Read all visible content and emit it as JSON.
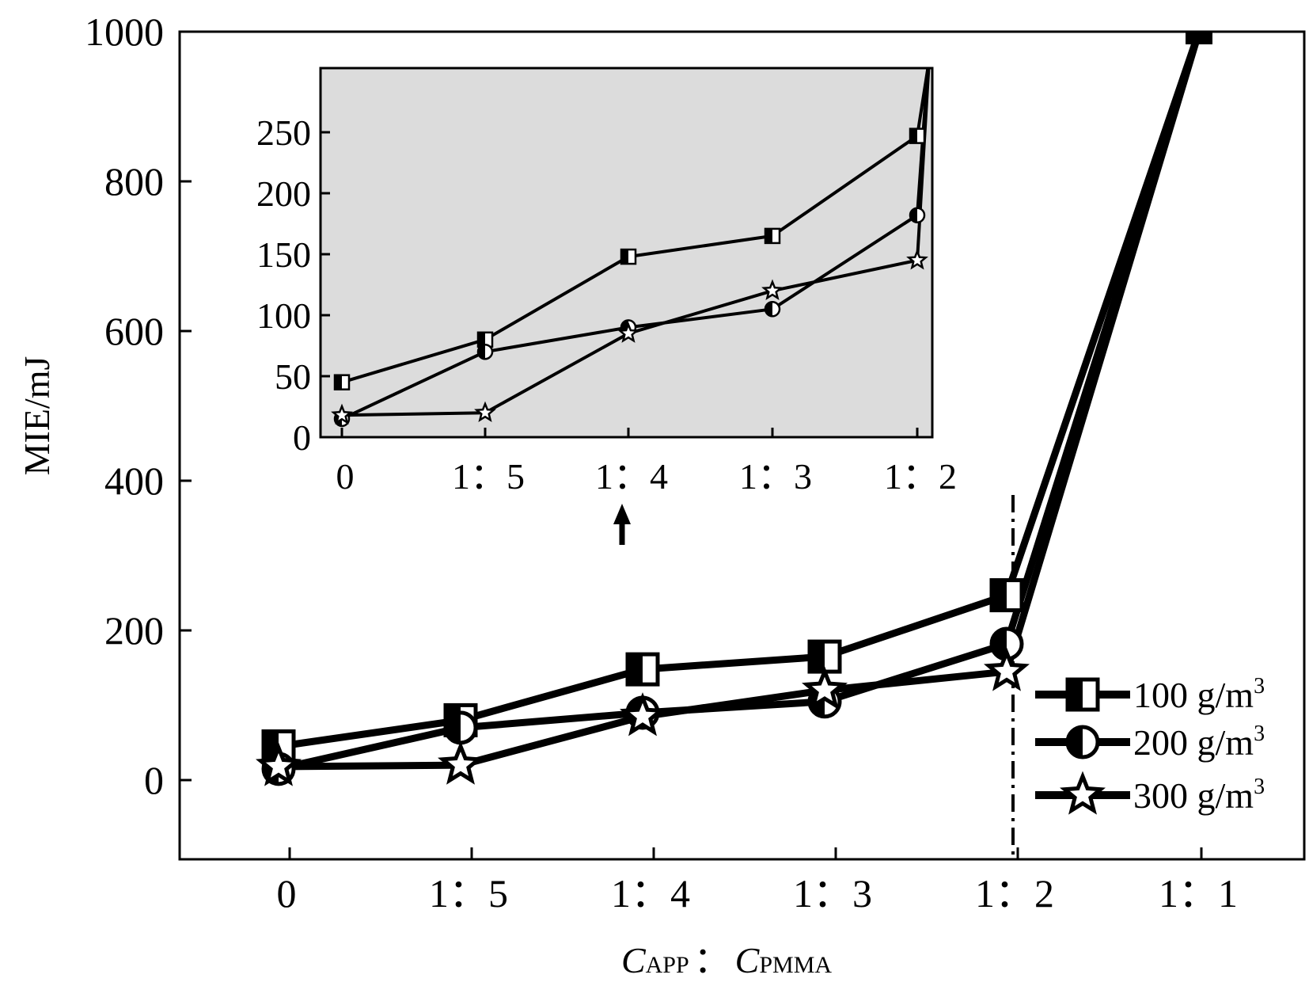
{
  "chart_data": {
    "type": "line",
    "ylabel": "MIE/mJ",
    "xlabel": {
      "c1": "C",
      "s1": "APP",
      "sep": "：",
      "c2": "C",
      "s2": "PMMA"
    },
    "categories": [
      "0",
      "1：5",
      "1：4",
      "1：3",
      "1：2",
      "1：1"
    ],
    "ylim": [
      -100,
      1000
    ],
    "yticks": [
      0,
      200,
      400,
      600,
      800,
      1000
    ],
    "series": [
      {
        "name": "100 g/m",
        "sup": "3",
        "marker": "half-square",
        "values": [
          45,
          80,
          148,
          165,
          247,
          1000
        ]
      },
      {
        "name": "200 g/m",
        "sup": "3",
        "marker": "half-circle",
        "values": [
          15,
          70,
          90,
          105,
          182,
          1000
        ]
      },
      {
        "name": "300 g/m",
        "sup": "3",
        "marker": "star",
        "values": [
          18,
          20,
          85,
          120,
          145,
          1000
        ]
      }
    ],
    "inset": {
      "categories": [
        "0",
        "1：5",
        "1：4",
        "1：3",
        "1：2"
      ],
      "ylim": [
        0,
        295
      ],
      "yticks": [
        0,
        50,
        100,
        150,
        200,
        250
      ],
      "background": "#dcdcdc"
    },
    "guide_line_at": "1：2",
    "arrow_at": "1：4"
  }
}
